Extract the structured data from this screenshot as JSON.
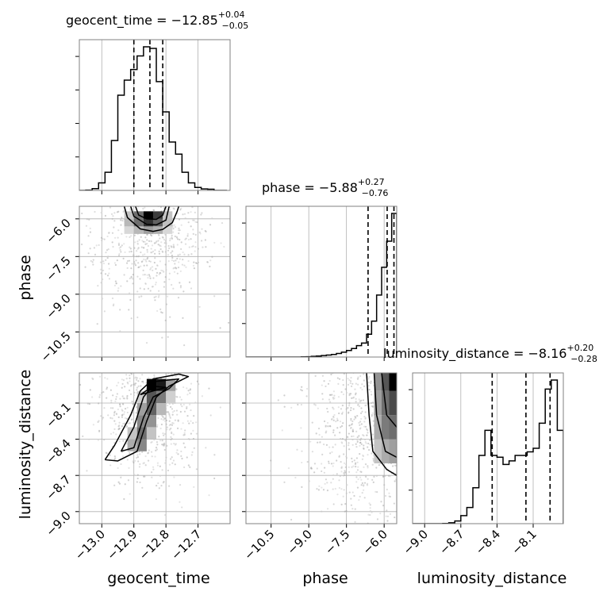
{
  "chart_data": {
    "type": "corner",
    "parameters": [
      "geocent_time",
      "phase",
      "luminosity_distance"
    ],
    "titles": [
      {
        "parameter": "geocent_time",
        "prefix": "geocent_time = ",
        "median": "−12.85",
        "upper": "+0.04",
        "lower": "−0.05"
      },
      {
        "parameter": "phase",
        "prefix": "phase = ",
        "median": "−5.88",
        "upper": "+0.27",
        "lower": "−0.76"
      },
      {
        "parameter": "luminosity_distance",
        "prefix": "luminosity_distance = ",
        "median": "−8.16",
        "upper": "+0.20",
        "lower": "−0.28"
      }
    ],
    "axes": {
      "geocent_time": {
        "range": [
          -13.07,
          -12.6
        ],
        "ticks": [
          -13.0,
          -12.9,
          -12.8,
          -12.7
        ],
        "tick_labels": [
          "−13.0",
          "−12.9",
          "−12.8",
          "−12.7"
        ]
      },
      "phase": {
        "range": [
          -11.5,
          -5.5
        ],
        "ticks": [
          -10.5,
          -9.0,
          -7.5,
          -6.0
        ],
        "tick_labels": [
          "−10.5",
          "−9.0",
          "−7.5",
          "−6.0"
        ]
      },
      "luminosity_distance": {
        "range": [
          -9.1,
          -7.85
        ],
        "ticks": [
          -9.0,
          -8.7,
          -8.4,
          -8.1
        ],
        "tick_labels": [
          "−9.0",
          "−8.7",
          "−8.4",
          "−8.1"
        ]
      }
    },
    "histograms": [
      {
        "parameter": "geocent_time",
        "bin_edges": [
          -13.07,
          -13.05,
          -13.03,
          -13.01,
          -12.99,
          -12.97,
          -12.95,
          -12.93,
          -12.91,
          -12.89,
          -12.87,
          -12.85,
          -12.83,
          -12.81,
          -12.79,
          -12.77,
          -12.75,
          -12.73,
          -12.71,
          -12.69,
          -12.67,
          -12.65,
          -12.63,
          -12.61
        ],
        "counts": [
          0.0,
          0.2,
          1.2,
          5.0,
          12.0,
          33.0,
          63.0,
          73.0,
          80.0,
          89.0,
          95.0,
          94.0,
          72.0,
          52.0,
          32.0,
          24.0,
          12.0,
          5.0,
          2.0,
          1.0,
          0.8,
          0.0,
          0.0
        ],
        "quantiles": [
          -12.9,
          -12.85,
          -12.81
        ]
      },
      {
        "parameter": "phase",
        "bin_edges": [
          -11.5,
          -11.3,
          -11.1,
          -10.9,
          -10.7,
          -10.5,
          -10.3,
          -10.1,
          -9.9,
          -9.7,
          -9.5,
          -9.3,
          -9.1,
          -8.9,
          -8.7,
          -8.5,
          -8.3,
          -8.1,
          -7.9,
          -7.7,
          -7.5,
          -7.3,
          -7.1,
          -6.9,
          -6.7,
          -6.5,
          -6.3,
          -6.1,
          -5.9,
          -5.7,
          -5.5
        ],
        "counts": [
          0.0,
          0.0,
          0.0,
          0.0,
          0.0,
          0.0,
          0.0,
          0.0,
          0.0,
          0.0,
          0.0,
          0.1,
          0.2,
          0.4,
          0.6,
          0.9,
          1.2,
          1.6,
          2.2,
          3.0,
          4.0,
          5.2,
          7.0,
          8.6,
          14.0,
          22.0,
          38.0,
          55.0,
          71.0,
          88.0
        ],
        "quantiles": [
          -6.64,
          -5.88,
          -5.61
        ]
      },
      {
        "parameter": "luminosity_distance",
        "bin_edges": [
          -9.1,
          -9.05,
          -9.0,
          -8.95,
          -8.9,
          -8.85,
          -8.8,
          -8.75,
          -8.7,
          -8.65,
          -8.6,
          -8.55,
          -8.5,
          -8.45,
          -8.4,
          -8.35,
          -8.3,
          -8.25,
          -8.2,
          -8.15,
          -8.1,
          -8.05,
          -8.0,
          -7.95,
          -7.9,
          -7.85
        ],
        "counts": [
          0.0,
          0.0,
          0.0,
          0.0,
          0.0,
          0.1,
          0.5,
          1.5,
          4.5,
          9.0,
          20.0,
          38.0,
          52.0,
          38.0,
          37.0,
          33.0,
          35.0,
          38.0,
          38.0,
          40.0,
          42.0,
          56.0,
          75.0,
          80.0,
          52.0
        ],
        "quantiles": [
          -8.44,
          -8.16,
          -7.96
        ]
      }
    ],
    "joint": [
      {
        "x": "geocent_time",
        "y": "phase",
        "hist_bins": {
          "x_edges": [
            -12.93,
            -12.9,
            -12.87,
            -12.84,
            -12.81,
            -12.78
          ],
          "y_edges": [
            -6.6,
            -6.3,
            -6.0,
            -5.7
          ],
          "values": [
            [
              0.12,
              0.25,
              0.35,
              0.28,
              0.12
            ],
            [
              0.25,
              0.55,
              0.8,
              0.6,
              0.22
            ],
            [
              0.2,
              0.55,
              1.0,
              0.75,
              0.2
            ]
          ]
        },
        "contours": [
          [
            [
              -12.93,
              -5.5
            ],
            [
              -12.92,
              -5.95
            ],
            [
              -12.88,
              -6.4
            ],
            [
              -12.84,
              -6.5
            ],
            [
              -12.81,
              -6.42
            ],
            [
              -12.78,
              -6.15
            ],
            [
              -12.765,
              -5.7
            ],
            [
              -12.76,
              -5.5
            ]
          ],
          [
            [
              -12.91,
              -5.5
            ],
            [
              -12.9,
              -5.9
            ],
            [
              -12.86,
              -6.22
            ],
            [
              -12.83,
              -6.24
            ],
            [
              -12.8,
              -6.05
            ],
            [
              -12.79,
              -5.5
            ]
          ],
          [
            [
              -12.895,
              -5.5
            ],
            [
              -12.885,
              -5.85
            ],
            [
              -12.86,
              -6.0
            ],
            [
              -12.83,
              -6.02
            ],
            [
              -12.81,
              -5.85
            ],
            [
              -12.8,
              -5.5
            ]
          ]
        ],
        "scatter_region": {
          "x_center": -12.85,
          "x_spread": 0.1,
          "y_center": -6.8,
          "y_spread": 1.4,
          "count": 650
        }
      },
      {
        "x": "geocent_time",
        "y": "luminosity_distance",
        "hist_bins": {
          "x_edges": [
            -12.92,
            -12.89,
            -12.86,
            -12.83,
            -12.8,
            -12.77
          ],
          "y_edges": [
            -8.5,
            -8.4,
            -8.3,
            -8.2,
            -8.1,
            -8.0,
            -7.9
          ],
          "values": [
            [
              0.3,
              0.45,
              0.0,
              0.0,
              0.0
            ],
            [
              0.2,
              0.55,
              0.2,
              0.0,
              0.0
            ],
            [
              0.0,
              0.45,
              0.4,
              0.0,
              0.0
            ],
            [
              0.0,
              0.35,
              0.6,
              0.25,
              0.0
            ],
            [
              0.0,
              0.15,
              0.65,
              0.5,
              0.15
            ],
            [
              0.0,
              0.0,
              1.0,
              0.9,
              0.35
            ]
          ]
        },
        "contours": [
          [
            [
              -12.99,
              -8.57
            ],
            [
              -12.95,
              -8.58
            ],
            [
              -12.89,
              -8.5
            ],
            [
              -12.86,
              -8.25
            ],
            [
              -12.83,
              -8.05
            ],
            [
              -12.79,
              -7.96
            ],
            [
              -12.73,
              -7.88
            ],
            [
              -12.76,
              -7.86
            ],
            [
              -12.84,
              -7.9
            ],
            [
              -12.88,
              -8.0
            ],
            [
              -12.91,
              -8.2
            ],
            [
              -12.96,
              -8.45
            ],
            [
              -12.99,
              -8.57
            ]
          ],
          [
            [
              -12.94,
              -8.5
            ],
            [
              -12.9,
              -8.47
            ],
            [
              -12.87,
              -8.22
            ],
            [
              -12.84,
              -8.05
            ],
            [
              -12.79,
              -7.98
            ],
            [
              -12.76,
              -7.9
            ],
            [
              -12.83,
              -7.92
            ],
            [
              -12.87,
              -8.05
            ],
            [
              -12.9,
              -8.3
            ],
            [
              -12.94,
              -8.5
            ]
          ],
          [
            [
              -12.88,
              -8.03
            ],
            [
              -12.84,
              -8.0
            ],
            [
              -12.8,
              -7.97
            ],
            [
              -12.84,
              -7.96
            ],
            [
              -12.88,
              -8.03
            ]
          ]
        ],
        "scatter_region": {
          "x_center": -12.86,
          "x_spread": 0.08,
          "y_center": -8.2,
          "y_spread": 0.3,
          "count": 700
        }
      },
      {
        "x": "phase",
        "y": "luminosity_distance",
        "hist_bins": {
          "x_edges": [
            -6.4,
            -6.1,
            -5.8,
            -5.5
          ],
          "y_edges": [
            -8.6,
            -8.4,
            -8.2,
            -8.0,
            -7.85
          ],
          "values": [
            [
              0.2,
              0.3,
              0.35
            ],
            [
              0.3,
              0.5,
              0.55
            ],
            [
              0.35,
              0.55,
              0.7
            ],
            [
              0.4,
              0.65,
              1.0
            ]
          ]
        },
        "contours": [
          [
            [
              -5.5,
              -8.7
            ],
            [
              -5.9,
              -8.65
            ],
            [
              -6.45,
              -8.5
            ],
            [
              -6.6,
              -8.2
            ],
            [
              -6.7,
              -7.85
            ]
          ],
          [
            [
              -5.5,
              -8.55
            ],
            [
              -5.95,
              -8.5
            ],
            [
              -6.3,
              -8.2
            ],
            [
              -6.4,
              -7.85
            ]
          ],
          [
            [
              -5.5,
              -8.3
            ],
            [
              -5.9,
              -8.2
            ],
            [
              -6.1,
              -7.85
            ]
          ]
        ],
        "scatter_region": {
          "x_center": -6.8,
          "x_spread": 1.2,
          "y_center": -8.3,
          "y_spread": 0.4,
          "count": 800
        }
      }
    ]
  }
}
